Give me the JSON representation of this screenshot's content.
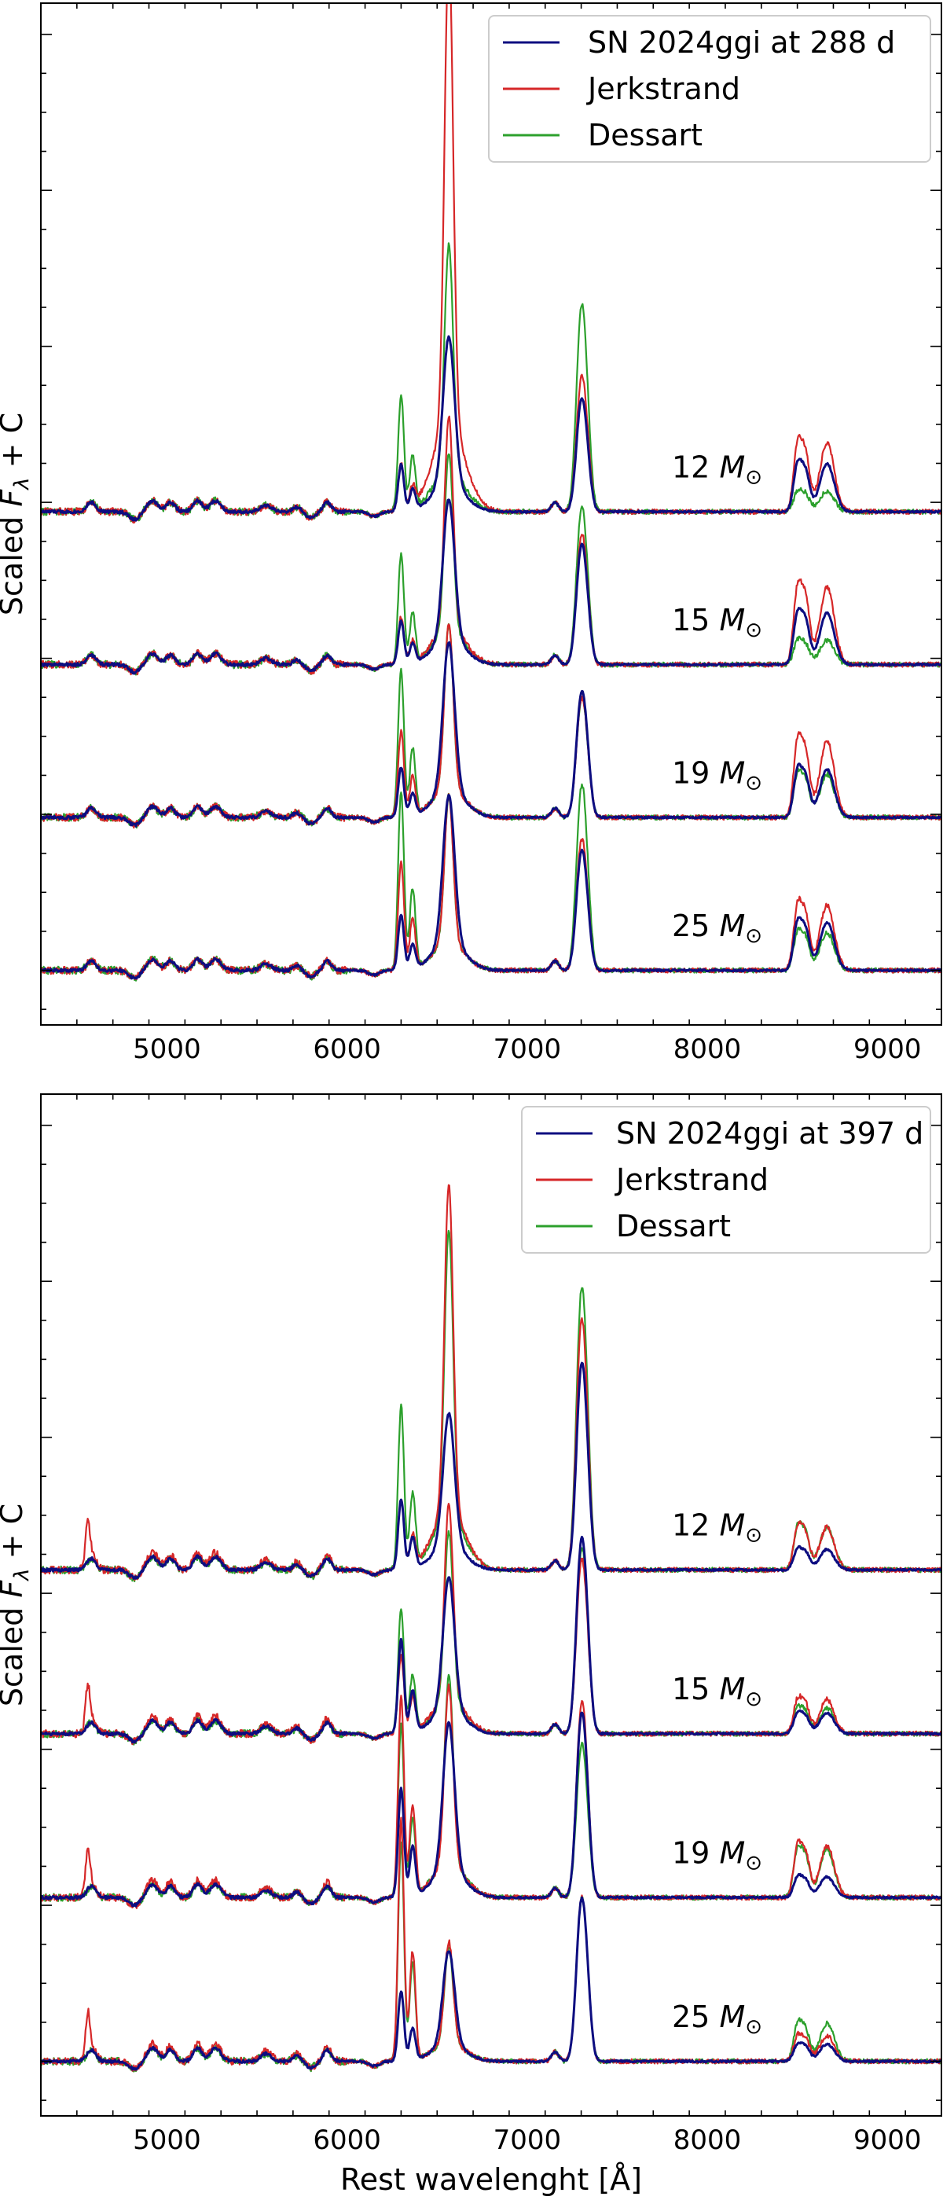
{
  "colors": {
    "observed": "#0d0d80",
    "jerkstrand": "#d62728",
    "dessart": "#2ca02c"
  },
  "chart_data": [
    {
      "type": "line",
      "xlabel": "",
      "ylabel": "Scaled F_λ + C",
      "ylabel_parts": {
        "pre": "Scaled ",
        "sym": "F",
        "sub": "λ",
        "post": " + C"
      },
      "xlim": [
        4300,
        9300
      ],
      "xticks": [
        5000,
        6000,
        7000,
        8000,
        9000
      ],
      "xtick_labels": [
        "5000",
        "6000",
        "7000",
        "8000",
        "9000"
      ],
      "grid": false,
      "legend_placement": "top-right",
      "legend": [
        "SN 2024ggi at 288 d",
        "Jerkstrand",
        "Dessart"
      ],
      "epoch_days": 288,
      "offset_step": 0.98,
      "ylim": [
        -0.35,
        6.2
      ],
      "panels": [
        {
          "label": "12 M☉",
          "label_num": "12",
          "label_sym": "M",
          "label_sub": "⊙",
          "ha_obs": 0.95,
          "ha_jer": 3.05,
          "ha_des": 1.45,
          "ca_obs": 0.52,
          "ca_jer": 0.62,
          "ca_des": 0.95,
          "oi_obs": 0.3,
          "oi_jer": 0.3,
          "oi_des": 0.75,
          "ir_obs": 0.28,
          "ir_jer": 0.4,
          "ir_des": 0.12
        },
        {
          "label": "15 M☉",
          "label_num": "15",
          "label_sym": "M",
          "label_sub": "⊙",
          "ha_obs": 0.9,
          "ha_jer": 1.35,
          "ha_des": 1.15,
          "ca_obs": 0.55,
          "ca_jer": 0.6,
          "ca_des": 0.72,
          "oi_obs": 0.28,
          "oi_jer": 0.3,
          "oi_des": 0.7,
          "ir_obs": 0.3,
          "ir_jer": 0.45,
          "ir_des": 0.14
        },
        {
          "label": "19 M☉",
          "label_num": "19",
          "label_sym": "M",
          "label_sub": "⊙",
          "ha_obs": 0.95,
          "ha_jer": 1.05,
          "ha_des": 1.05,
          "ca_obs": 0.58,
          "ca_jer": 0.55,
          "ca_des": 0.55,
          "oi_obs": 0.32,
          "oi_jer": 0.55,
          "oi_des": 0.95,
          "ir_obs": 0.28,
          "ir_jer": 0.45,
          "ir_des": 0.25
        },
        {
          "label": "25 M☉",
          "label_num": "25",
          "label_sym": "M",
          "label_sub": "⊙",
          "ha_obs": 0.95,
          "ha_jer": 0.95,
          "ha_des": 0.95,
          "ca_obs": 0.55,
          "ca_jer": 0.6,
          "ca_des": 0.85,
          "oi_obs": 0.35,
          "oi_jer": 0.7,
          "oi_des": 1.15,
          "ir_obs": 0.28,
          "ir_jer": 0.38,
          "ir_des": 0.22
        }
      ]
    },
    {
      "type": "line",
      "xlabel": "Rest wavelenght [Å]",
      "ylabel": "Scaled F_λ + C",
      "ylabel_parts": {
        "pre": "Scaled ",
        "sym": "F",
        "sub": "λ",
        "post": " + C"
      },
      "xlim": [
        4300,
        9300
      ],
      "xticks": [
        5000,
        6000,
        7000,
        8000,
        9000
      ],
      "xtick_labels": [
        "5000",
        "6000",
        "7000",
        "8000",
        "9000"
      ],
      "grid": false,
      "legend_placement": "top-right",
      "legend": [
        "SN 2024ggi at 397 d",
        "Jerkstrand",
        "Dessart"
      ],
      "epoch_days": 397,
      "offset_step": 1.05,
      "ylim": [
        -0.35,
        6.2
      ],
      "panels": [
        {
          "label": "12 M☉",
          "label_num": "12",
          "label_sym": "M",
          "label_sub": "⊙",
          "ha_obs": 0.85,
          "ha_jer": 2.1,
          "ha_des": 1.85,
          "ca_obs": 0.95,
          "ca_jer": 1.15,
          "ca_des": 1.3,
          "oi_obs": 0.45,
          "oi_jer": 0.45,
          "oi_des": 1.05,
          "ir_obs": 0.12,
          "ir_jer": 0.25,
          "ir_des": 0.25
        },
        {
          "label": "15 M☉",
          "label_num": "15",
          "label_sym": "M",
          "label_sub": "⊙",
          "ha_obs": 0.85,
          "ha_jer": 1.25,
          "ha_des": 1.1,
          "ca_obs": 0.9,
          "ca_jer": 0.8,
          "ca_des": 0.85,
          "oi_obs": 0.6,
          "oi_jer": 0.5,
          "oi_des": 0.8,
          "ir_obs": 0.12,
          "ir_jer": 0.2,
          "ir_des": 0.15
        },
        {
          "label": "19 M☉",
          "label_num": "19",
          "label_sym": "M",
          "label_sub": "⊙",
          "ha_obs": 0.95,
          "ha_jer": 1.15,
          "ha_des": 1.2,
          "ca_obs": 0.85,
          "ca_jer": 0.9,
          "ca_des": 0.7,
          "oi_obs": 0.7,
          "oi_jer": 1.3,
          "oi_des": 1.1,
          "ir_obs": 0.12,
          "ir_jer": 0.3,
          "ir_des": 0.28
        },
        {
          "label": "25 M☉",
          "label_num": "25",
          "label_sym": "M",
          "label_sub": "⊙",
          "ha_obs": 0.6,
          "ha_jer": 0.65,
          "ha_des": 0.62,
          "ca_obs": 0.75,
          "ca_jer": 0.75,
          "ca_des": 0.75,
          "oi_obs": 0.45,
          "oi_jer": 1.55,
          "oi_des": 1.4,
          "ir_obs": 0.1,
          "ir_jer": 0.15,
          "ir_des": 0.22
        }
      ]
    }
  ]
}
